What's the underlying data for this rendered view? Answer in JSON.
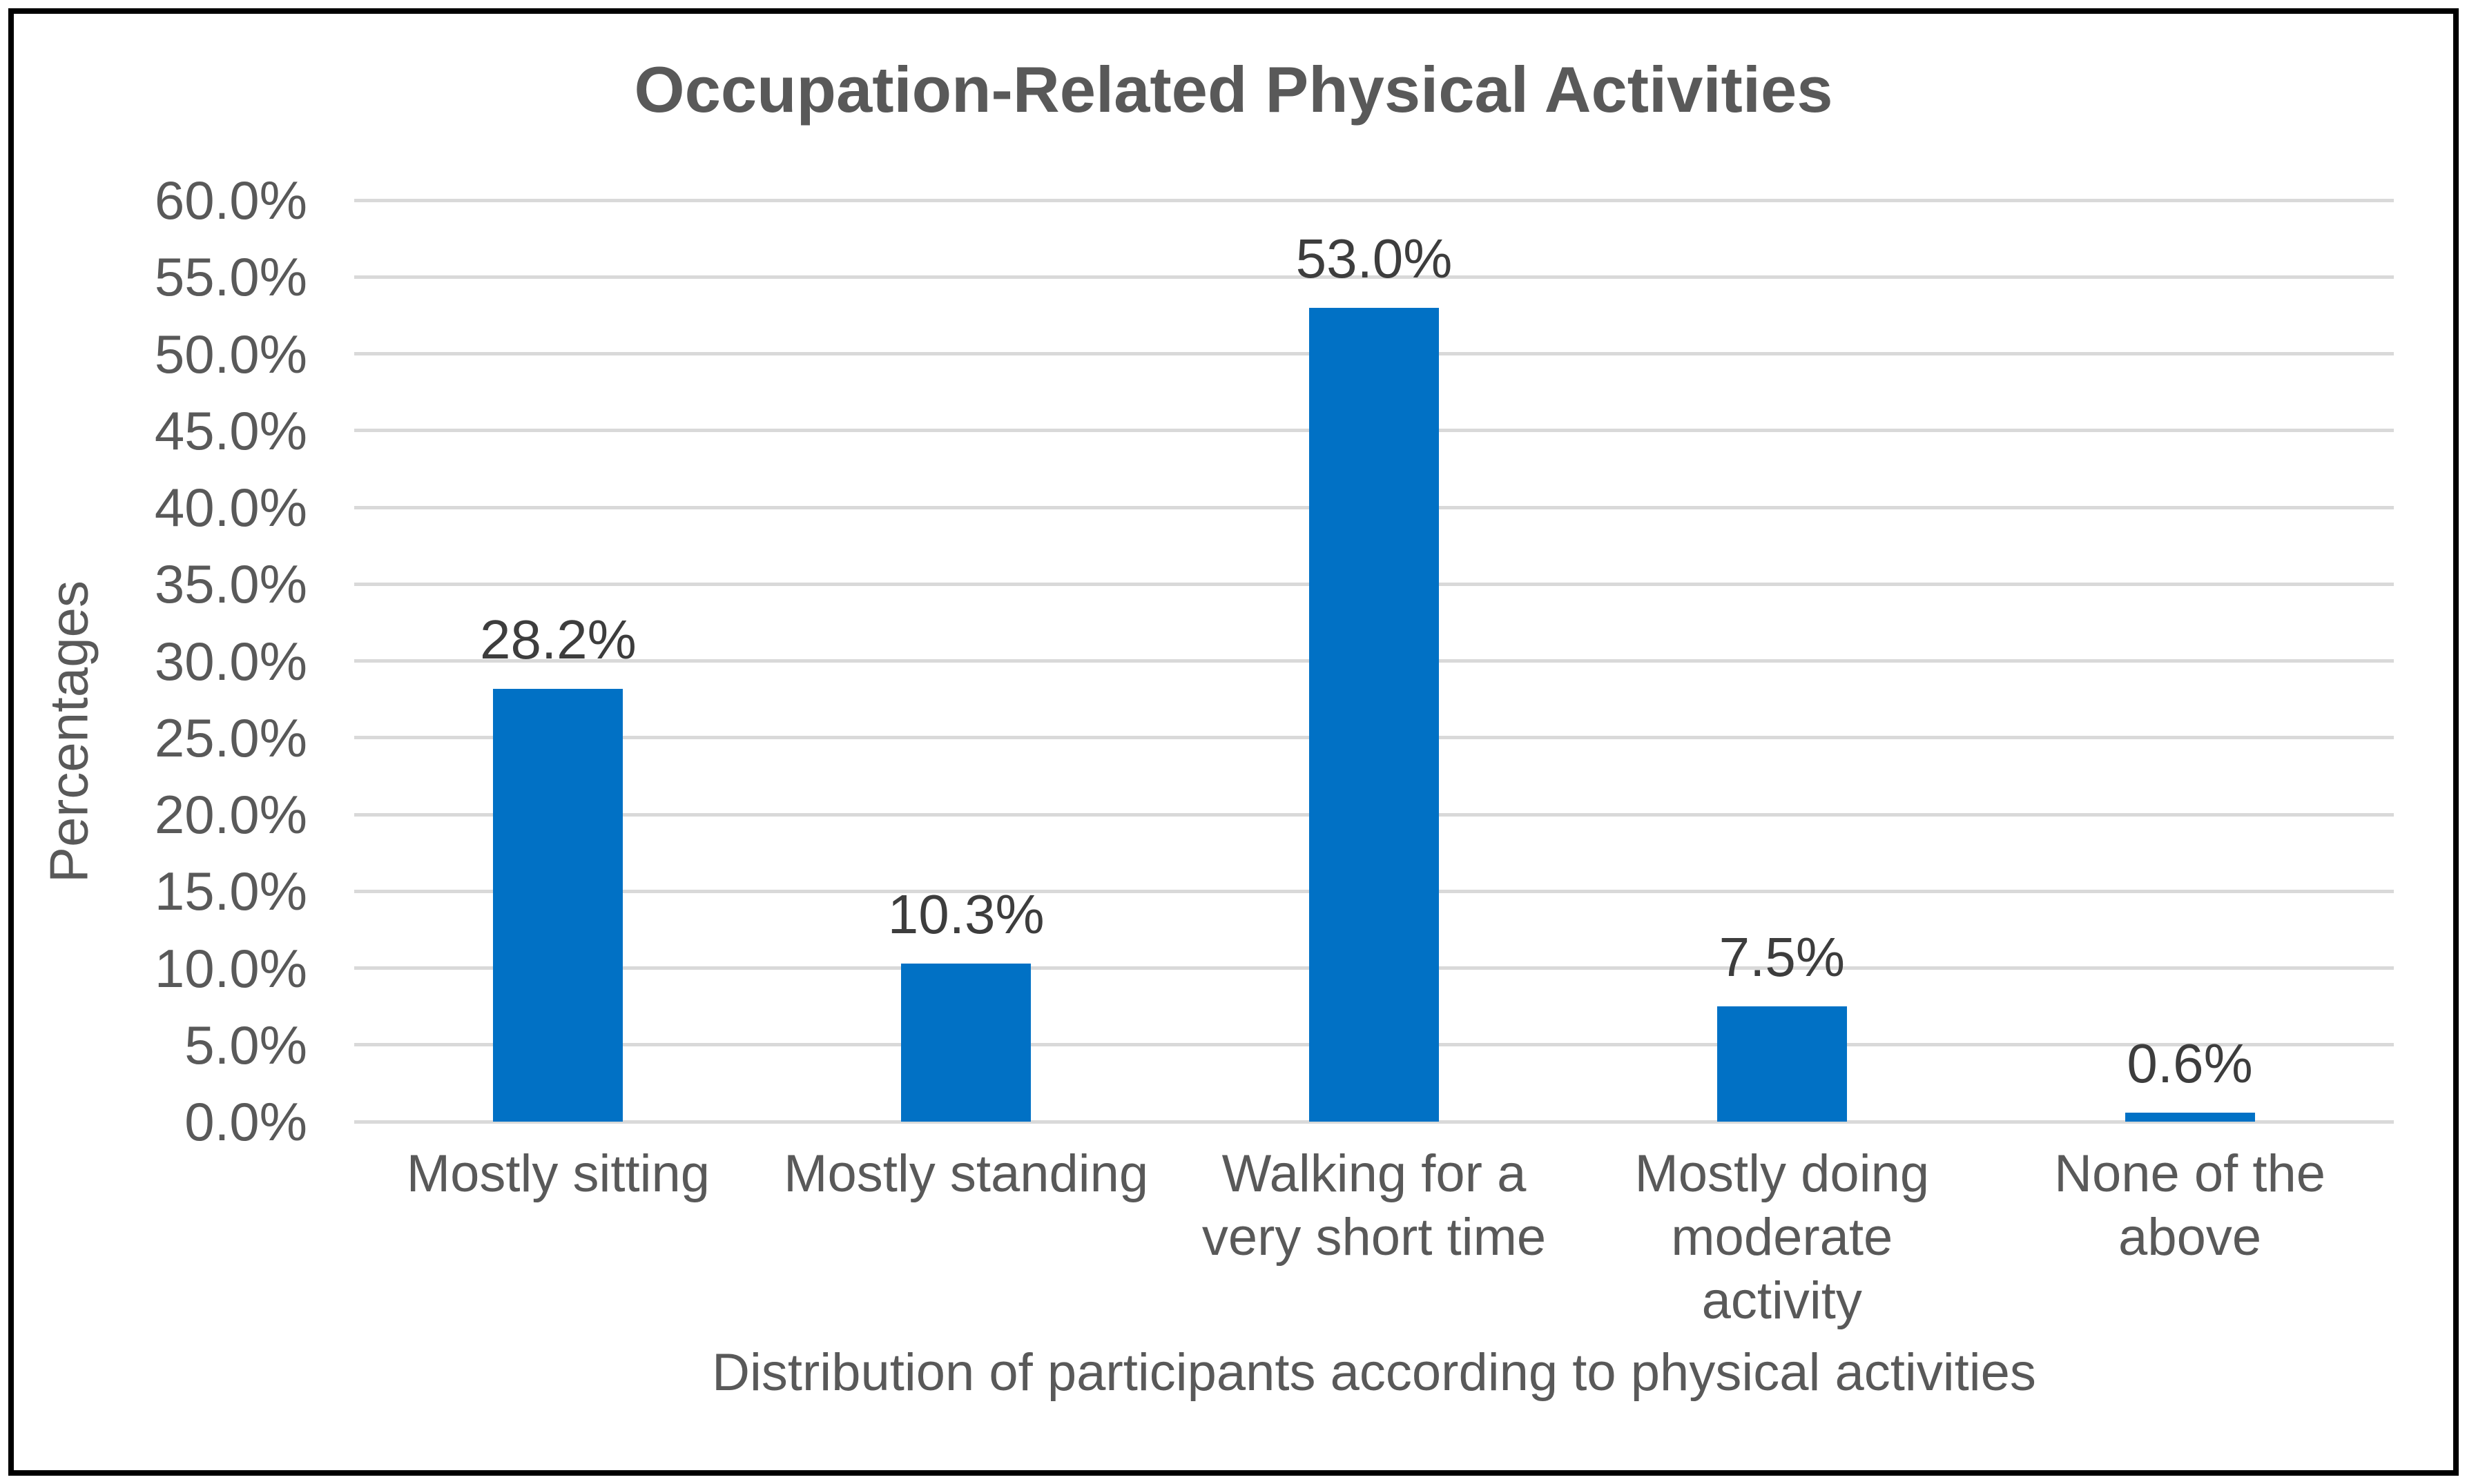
{
  "chart_data": {
    "type": "bar",
    "title": "Occupation-Related Physical Activities",
    "xlabel": "Distribution of participants according to physical activities",
    "ylabel": "Percentages",
    "categories": [
      "Mostly sitting",
      "Mostly standing",
      "Walking for a very short time",
      "Mostly doing moderate activity",
      "None of the above"
    ],
    "categories_lines": [
      [
        "Mostly sitting"
      ],
      [
        "Mostly standing"
      ],
      [
        "Walking for a",
        "very short time"
      ],
      [
        "Mostly doing",
        "moderate",
        "activity"
      ],
      [
        "None of the",
        "above"
      ]
    ],
    "values": [
      28.2,
      10.3,
      53.0,
      7.5,
      0.6
    ],
    "data_labels": [
      "28.2%",
      "10.3%",
      "53.0%",
      "7.5%",
      "0.6%"
    ],
    "ylim": [
      0,
      60
    ],
    "ytick_step": 5,
    "ytick_labels": [
      "0.0%",
      "5.0%",
      "10.0%",
      "15.0%",
      "20.0%",
      "25.0%",
      "30.0%",
      "35.0%",
      "40.0%",
      "45.0%",
      "50.0%",
      "55.0%",
      "60.0%"
    ],
    "grid": true,
    "legend": "none",
    "bar_color": "#0171c5",
    "gridline_color": "#d9d9d9",
    "axis_text_color": "#595959",
    "data_label_color": "#3d3d3d",
    "border_color": "#000000",
    "background_color": "#ffffff"
  }
}
